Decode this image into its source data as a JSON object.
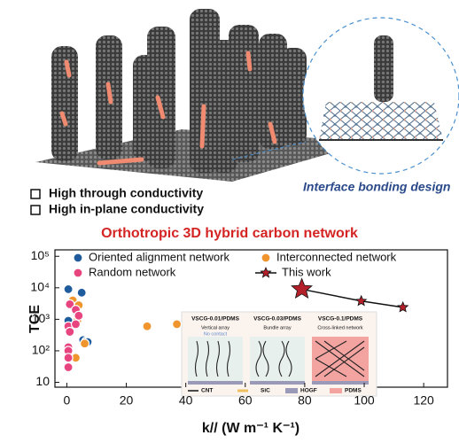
{
  "header": {
    "features": [
      "High through conductivity",
      "High in-plane conductivity"
    ],
    "callout": "Interface bonding design"
  },
  "chart_data": {
    "type": "scatter",
    "title": "Orthotropic 3D hybrid carbon network",
    "x_label": "k// (W m⁻¹ K⁻¹)",
    "y_label": "TCE",
    "xlim": [
      -4,
      128
    ],
    "ylim": [
      7,
      160000
    ],
    "log_y": true,
    "xticks": [
      0,
      20,
      40,
      60,
      80,
      100,
      120
    ],
    "yticks": [
      10,
      {
        "value": 100,
        "label": "10²"
      },
      {
        "value": 1000,
        "label": "10³"
      },
      {
        "value": 10000,
        "label": "10⁴"
      },
      {
        "value": 100000,
        "label": "10⁵"
      }
    ],
    "grid": false,
    "legend": "top",
    "series": [
      {
        "name": "Oriented alignment network",
        "color": "#1f5c9e",
        "marker": "circle",
        "x": [
          0.5,
          5,
          1,
          3,
          0.5,
          5.5,
          6.5,
          7
        ],
        "values": [
          9000,
          7000,
          2800,
          1800,
          900,
          220,
          200,
          190
        ]
      },
      {
        "name": "Interconnected network",
        "color": "#f0952e",
        "marker": "circle",
        "x": [
          2,
          4,
          3.5,
          6,
          3,
          27,
          37
        ],
        "values": [
          4000,
          2800,
          900,
          170,
          60,
          600,
          700
        ]
      },
      {
        "name": "Random network",
        "color": "#e8447f",
        "marker": "circle",
        "x": [
          1,
          3,
          4,
          0.5,
          1,
          0.5,
          0.5,
          0.5,
          0.5,
          3
        ],
        "values": [
          3000,
          2000,
          1300,
          600,
          400,
          130,
          100,
          60,
          30,
          700
        ]
      },
      {
        "name": "This work",
        "color": "#b3202a",
        "marker": "star",
        "line": true,
        "x": [
          79,
          99,
          113
        ],
        "values": [
          9000,
          3800,
          2400
        ]
      }
    ]
  },
  "inset": {
    "panels": [
      {
        "title": "VSCG-0.01/PDMS",
        "lines": [
          "Vertical array",
          "No contact"
        ]
      },
      {
        "title": "VSCG-0.03/PDMS",
        "lines": [
          "Bundle array"
        ]
      },
      {
        "title": "VSCG-0.1/PDMS",
        "lines": [
          "Cross-linked network"
        ]
      }
    ],
    "legend": [
      "CNT",
      "SiC",
      "HOGF",
      "PDMS"
    ]
  }
}
